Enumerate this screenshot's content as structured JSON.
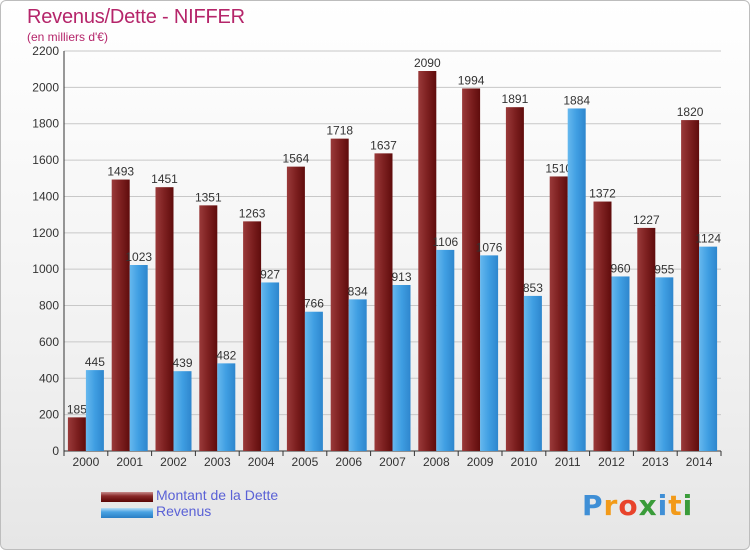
{
  "chart_data": {
    "type": "bar",
    "title": "Revenus/Dette - NIFFER",
    "subtitle": "(en milliers d'€)",
    "categories": [
      "2000",
      "2001",
      "2002",
      "2003",
      "2004",
      "2005",
      "2006",
      "2007",
      "2008",
      "2009",
      "2010",
      "2011",
      "2012",
      "2013",
      "2014"
    ],
    "series": [
      {
        "name": "Montant de la Dette",
        "color": "#7a1a1a",
        "values": [
          185,
          1493,
          1451,
          1351,
          1263,
          1564,
          1718,
          1637,
          2090,
          1994,
          1891,
          1510,
          1372,
          1227,
          1820
        ]
      },
      {
        "name": "Revenus",
        "color": "#3d9be0",
        "values": [
          445,
          1023,
          439,
          482,
          927,
          766,
          834,
          913,
          1106,
          1076,
          853,
          1884,
          960,
          955,
          1124
        ]
      }
    ],
    "ylim": [
      0,
      2200
    ],
    "yticks": [
      0,
      200,
      400,
      600,
      800,
      1000,
      1200,
      1400,
      1600,
      1800,
      2000,
      2200
    ],
    "grid": true,
    "legend_position": "bottom-left"
  },
  "logo": {
    "text": "Proxiti",
    "colors": [
      "#3f8fd6",
      "#f29a19",
      "#e8432b",
      "#3a9c3a"
    ]
  }
}
